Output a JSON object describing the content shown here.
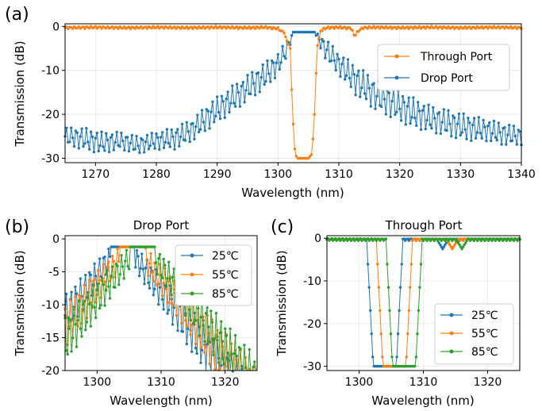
{
  "chart_data": [
    {
      "panel": "(a)",
      "type": "line",
      "title": "",
      "xlabel": "Wavelength (nm)",
      "ylabel": "Transmission (dB)",
      "xlim": [
        1265,
        1340
      ],
      "ylim": [
        -31,
        0.6
      ],
      "xticks": [
        1270,
        1280,
        1290,
        1300,
        1310,
        1320,
        1330,
        1340
      ],
      "yticks": [
        0,
        -10,
        -20,
        -30
      ],
      "grid": true,
      "legend_position": "right",
      "series": [
        {
          "name": "Through Port",
          "color": "#ff7f0e",
          "x": [
            1265,
            1270,
            1275,
            1280,
            1285,
            1290,
            1295,
            1298,
            1300,
            1301,
            1302,
            1302.4,
            1302.8,
            1303.2,
            1304,
            1305,
            1305.6,
            1306,
            1306.4,
            1307,
            1308,
            1310,
            1312,
            1312.6,
            1313.2,
            1314,
            1316,
            1320,
            1325,
            1330,
            1335,
            1337,
            1340
          ],
          "values": [
            -0.3,
            -0.2,
            -0.3,
            -0.2,
            -0.3,
            -0.2,
            -0.3,
            -0.2,
            -0.5,
            -1.5,
            -5,
            -20,
            -29,
            -30,
            -30,
            -30,
            -29,
            -20,
            -5,
            -1,
            -0.3,
            -0.2,
            -0.4,
            -2.2,
            -1,
            -0.3,
            -0.2,
            -0.3,
            -0.2,
            -0.3,
            -0.2,
            -0.2,
            -0.3
          ]
        },
        {
          "name": "Drop Port",
          "color": "#1f77b4",
          "x": [
            1265,
            1268,
            1271,
            1274,
            1277,
            1280,
            1283,
            1286,
            1289,
            1292,
            1295,
            1298,
            1300,
            1301.5,
            1302.5,
            1304,
            1306,
            1307,
            1308,
            1310,
            1313,
            1316,
            1319,
            1322,
            1325,
            1328,
            1331,
            1334,
            1337,
            1340
          ],
          "low": [
            -27,
            -28,
            -29,
            -28,
            -29,
            -28,
            -28,
            -26,
            -23,
            -20,
            -17,
            -14,
            -11,
            -7,
            -1.3,
            -1.3,
            -1.3,
            -5,
            -8,
            -11,
            -16,
            -19,
            -21,
            -23,
            -24,
            -25,
            -26,
            -26,
            -27,
            -27
          ],
          "high": [
            -23,
            -23,
            -24,
            -24,
            -25,
            -24,
            -23,
            -21,
            -17,
            -14,
            -11,
            -8,
            -6,
            -3,
            -1.3,
            -1.3,
            -1.3,
            -2,
            -3,
            -6,
            -9,
            -12,
            -14,
            -16,
            -18,
            -19,
            -20,
            -21,
            -22,
            -23
          ]
        }
      ]
    },
    {
      "panel": "(b)",
      "type": "line",
      "title": "Drop Port",
      "xlabel": "Wavelength (nm)",
      "ylabel": "Transmission (dB)",
      "xlim": [
        1295,
        1325
      ],
      "ylim": [
        -20,
        0.5
      ],
      "xticks": [
        1300,
        1310,
        1320
      ],
      "yticks": [
        0,
        -5,
        -10,
        -15,
        -20
      ],
      "grid": true,
      "legend_position": "top-right",
      "series": [
        {
          "name": "25℃",
          "color": "#1f77b4",
          "center": 1304.0
        },
        {
          "name": "55℃",
          "color": "#ff7f0e",
          "center": 1305.5
        },
        {
          "name": "85℃",
          "color": "#2ca02c",
          "center": 1307.0
        }
      ]
    },
    {
      "panel": "(c)",
      "type": "line",
      "title": "Through Port",
      "xlabel": "Wavelength (nm)",
      "ylabel": "Transmission (dB)",
      "xlim": [
        1295,
        1325
      ],
      "ylim": [
        -31,
        0.6
      ],
      "xticks": [
        1300,
        1310,
        1320
      ],
      "yticks": [
        0,
        -10,
        -20,
        -30
      ],
      "grid": true,
      "legend_position": "bottom-right",
      "series": [
        {
          "name": "25℃",
          "color": "#1f77b4",
          "center": 1304.0,
          "side_dip": 1313.0
        },
        {
          "name": "55℃",
          "color": "#ff7f0e",
          "center": 1305.5,
          "side_dip": 1314.5
        },
        {
          "name": "85℃",
          "color": "#2ca02c",
          "center": 1307.0,
          "side_dip": 1316.0
        }
      ]
    }
  ]
}
